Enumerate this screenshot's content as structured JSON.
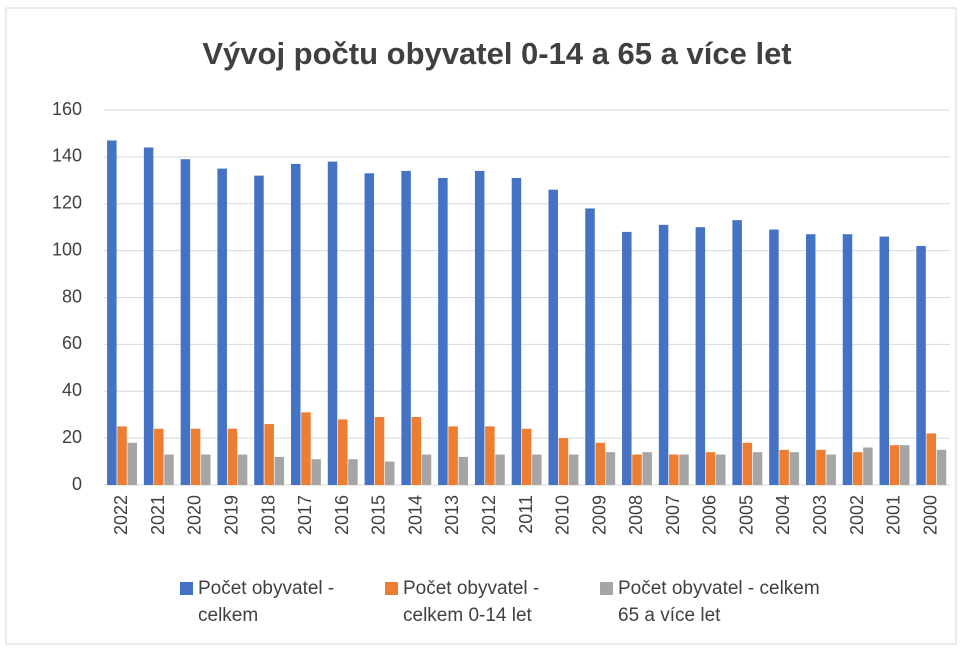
{
  "chart_data": {
    "type": "bar",
    "title": "Vývoj počtu obyvatel 0-14 a 65 a více let",
    "categories": [
      "2022",
      "2021",
      "2020",
      "2019",
      "2018",
      "2017",
      "2016",
      "2015",
      "2014",
      "2013",
      "2012",
      "2011",
      "2010",
      "2009",
      "2008",
      "2007",
      "2006",
      "2005",
      "2004",
      "2003",
      "2002",
      "2001",
      "2000"
    ],
    "series": [
      {
        "name": "Počet obyvatel - celkem",
        "color": "#4472c4",
        "values": [
          147,
          144,
          139,
          135,
          132,
          137,
          138,
          133,
          134,
          131,
          134,
          131,
          126,
          118,
          108,
          111,
          110,
          113,
          109,
          107,
          107,
          106,
          102
        ]
      },
      {
        "name": "Počet obyvatel - celkem 0-14 let",
        "color": "#ed7d31",
        "values": [
          25,
          24,
          24,
          24,
          26,
          31,
          28,
          29,
          29,
          25,
          25,
          24,
          20,
          18,
          13,
          13,
          14,
          18,
          15,
          15,
          14,
          17,
          22
        ]
      },
      {
        "name": "Počet obyvatel - celkem 65 a více let",
        "color": "#a5a5a5",
        "values": [
          18,
          13,
          13,
          13,
          12,
          11,
          11,
          10,
          13,
          12,
          13,
          13,
          13,
          14,
          14,
          13,
          13,
          14,
          14,
          13,
          16,
          17,
          15
        ]
      }
    ],
    "ylim": [
      0,
      160
    ],
    "yticks": [
      0,
      20,
      40,
      60,
      80,
      100,
      120,
      140,
      160
    ],
    "grid": true,
    "legend": "bottom"
  }
}
